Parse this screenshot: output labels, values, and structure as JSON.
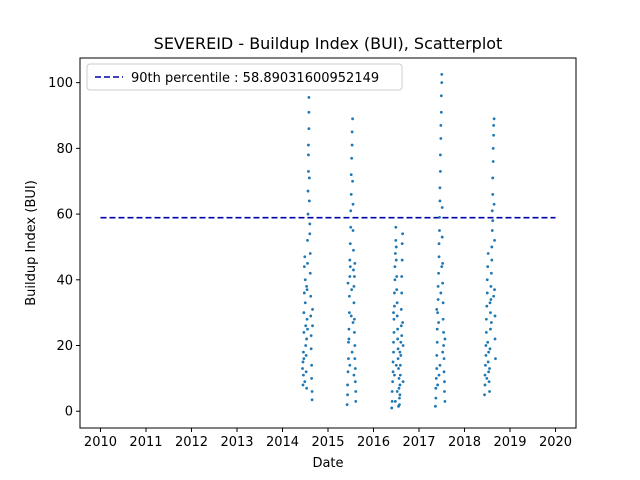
{
  "chart_data": {
    "type": "scatter",
    "title": "SEVEREID - Buildup Index (BUI), Scatterplot",
    "xlabel": "Date",
    "ylabel": "Buildup Index (BUI)",
    "xlim": [
      2009.55,
      2020.45
    ],
    "ylim": [
      -5.1,
      107.5
    ],
    "x_ticks": [
      2010,
      2011,
      2012,
      2013,
      2014,
      2015,
      2016,
      2017,
      2018,
      2019,
      2020
    ],
    "x_tick_labels": [
      "2010",
      "2011",
      "2012",
      "2013",
      "2014",
      "2015",
      "2016",
      "2017",
      "2018",
      "2019",
      "2020"
    ],
    "y_ticks": [
      0,
      20,
      40,
      60,
      80,
      100
    ],
    "y_tick_labels": [
      "0",
      "20",
      "40",
      "60",
      "80",
      "100"
    ],
    "grid": false,
    "legend_position": "top-left",
    "reference_line": {
      "label": "90th percentile : 58.89031600952149",
      "y": 58.89031600952149,
      "x_range": [
        2010.0,
        2020.0
      ],
      "style": "dashed",
      "color": "#0000aa"
    },
    "series": [
      {
        "color": "#1f77b4",
        "x_start_dates": [
          "2014-06-15",
          "2015-06-01",
          "2016-05-25",
          "2017-05-15",
          "2018-06-10"
        ],
        "x_end_dates": [
          "2014-08-15",
          "2015-08-10",
          "2016-08-15",
          "2017-08-20",
          "2018-08-25"
        ],
        "points": [
          [
            2014.44,
            13
          ],
          [
            2014.45,
            8
          ],
          [
            2014.45,
            15
          ],
          [
            2014.46,
            11
          ],
          [
            2014.46,
            18
          ],
          [
            2014.47,
            24
          ],
          [
            2014.47,
            30
          ],
          [
            2014.48,
            36
          ],
          [
            2014.48,
            44
          ],
          [
            2014.49,
            47
          ],
          [
            2014.5,
            40
          ],
          [
            2014.5,
            33
          ],
          [
            2014.51,
            26
          ],
          [
            2014.51,
            20
          ],
          [
            2014.52,
            17
          ],
          [
            2014.52,
            12
          ],
          [
            2014.53,
            7
          ],
          [
            2014.53,
            22
          ],
          [
            2014.54,
            28
          ],
          [
            2014.54,
            37
          ],
          [
            2014.55,
            45
          ],
          [
            2014.55,
            52
          ],
          [
            2014.56,
            60
          ],
          [
            2014.56,
            67
          ],
          [
            2014.57,
            73
          ],
          [
            2014.57,
            78
          ],
          [
            2014.57,
            81
          ],
          [
            2014.58,
            86
          ],
          [
            2014.58,
            91
          ],
          [
            2014.58,
            95.5
          ],
          [
            2014.59,
            71
          ],
          [
            2014.59,
            64
          ],
          [
            2014.6,
            57
          ],
          [
            2014.6,
            54
          ],
          [
            2014.61,
            48
          ],
          [
            2014.61,
            42
          ],
          [
            2014.62,
            35
          ],
          [
            2014.62,
            29
          ],
          [
            2014.63,
            23
          ],
          [
            2014.63,
            19
          ],
          [
            2014.64,
            14
          ],
          [
            2014.64,
            10
          ],
          [
            2014.65,
            6
          ],
          [
            2014.65,
            3.5
          ],
          [
            2014.66,
            26
          ],
          [
            2014.66,
            31
          ],
          [
            2014.53,
            38
          ],
          [
            2014.55,
            25
          ],
          [
            2014.49,
            9
          ],
          [
            2014.47,
            16
          ],
          [
            2015.42,
            2
          ],
          [
            2015.43,
            5
          ],
          [
            2015.43,
            8
          ],
          [
            2015.44,
            12
          ],
          [
            2015.45,
            16
          ],
          [
            2015.45,
            21
          ],
          [
            2015.46,
            25
          ],
          [
            2015.47,
            30
          ],
          [
            2015.47,
            35
          ],
          [
            2015.48,
            41
          ],
          [
            2015.48,
            46
          ],
          [
            2015.49,
            51
          ],
          [
            2015.5,
            56
          ],
          [
            2015.5,
            61
          ],
          [
            2015.51,
            66
          ],
          [
            2015.51,
            72
          ],
          [
            2015.52,
            77
          ],
          [
            2015.53,
            81
          ],
          [
            2015.53,
            85
          ],
          [
            2015.54,
            89
          ],
          [
            2015.54,
            70
          ],
          [
            2015.55,
            63
          ],
          [
            2015.55,
            55
          ],
          [
            2015.56,
            49
          ],
          [
            2015.56,
            43
          ],
          [
            2015.57,
            38
          ],
          [
            2015.57,
            33
          ],
          [
            2015.58,
            28
          ],
          [
            2015.58,
            24
          ],
          [
            2015.59,
            20
          ],
          [
            2015.59,
            16
          ],
          [
            2015.6,
            13
          ],
          [
            2015.6,
            9
          ],
          [
            2015.61,
            6
          ],
          [
            2015.61,
            3
          ],
          [
            2015.49,
            44
          ],
          [
            2015.52,
            37
          ],
          [
            2015.46,
            22
          ],
          [
            2015.55,
            27
          ],
          [
            2015.58,
            41
          ],
          [
            2015.59,
            45
          ],
          [
            2015.48,
            14
          ],
          [
            2015.53,
            18
          ],
          [
            2015.57,
            11
          ],
          [
            2015.44,
            39
          ],
          [
            2015.51,
            29
          ],
          [
            2016.4,
            1
          ],
          [
            2016.41,
            3
          ],
          [
            2016.41,
            6
          ],
          [
            2016.42,
            9
          ],
          [
            2016.43,
            12
          ],
          [
            2016.43,
            15
          ],
          [
            2016.44,
            18
          ],
          [
            2016.44,
            21
          ],
          [
            2016.45,
            24
          ],
          [
            2016.45,
            28
          ],
          [
            2016.46,
            32
          ],
          [
            2016.46,
            36
          ],
          [
            2016.47,
            40
          ],
          [
            2016.47,
            44
          ],
          [
            2016.48,
            48
          ],
          [
            2016.49,
            52
          ],
          [
            2016.49,
            56
          ],
          [
            2016.5,
            50
          ],
          [
            2016.5,
            46
          ],
          [
            2016.51,
            41
          ],
          [
            2016.51,
            37
          ],
          [
            2016.52,
            33
          ],
          [
            2016.52,
            29
          ],
          [
            2016.53,
            25
          ],
          [
            2016.53,
            22
          ],
          [
            2016.54,
            19
          ],
          [
            2016.54,
            16
          ],
          [
            2016.55,
            13
          ],
          [
            2016.56,
            10
          ],
          [
            2016.56,
            7
          ],
          [
            2016.57,
            4
          ],
          [
            2016.57,
            2
          ],
          [
            2016.58,
            5
          ],
          [
            2016.58,
            8
          ],
          [
            2016.59,
            11
          ],
          [
            2016.59,
            14
          ],
          [
            2016.6,
            17
          ],
          [
            2016.6,
            21
          ],
          [
            2016.61,
            26
          ],
          [
            2016.61,
            31
          ],
          [
            2016.62,
            36
          ],
          [
            2016.62,
            41
          ],
          [
            2016.63,
            46
          ],
          [
            2016.63,
            51
          ],
          [
            2016.64,
            54
          ],
          [
            2016.64,
            27
          ],
          [
            2016.65,
            20
          ],
          [
            2016.65,
            9
          ],
          [
            2016.48,
            3
          ],
          [
            2016.52,
            6
          ],
          [
            2016.55,
            1.5
          ],
          [
            2016.46,
            11
          ],
          [
            2016.5,
            14
          ],
          [
            2016.58,
            18
          ],
          [
            2016.62,
            23
          ],
          [
            2016.44,
            30
          ],
          [
            2017.36,
            1.5
          ],
          [
            2017.37,
            4
          ],
          [
            2017.37,
            7
          ],
          [
            2017.38,
            10
          ],
          [
            2017.39,
            13
          ],
          [
            2017.39,
            17
          ],
          [
            2017.4,
            21
          ],
          [
            2017.4,
            25
          ],
          [
            2017.41,
            30
          ],
          [
            2017.42,
            34
          ],
          [
            2017.42,
            38
          ],
          [
            2017.43,
            42
          ],
          [
            2017.44,
            47
          ],
          [
            2017.44,
            51
          ],
          [
            2017.45,
            55
          ],
          [
            2017.45,
            59
          ],
          [
            2017.46,
            64
          ],
          [
            2017.46,
            68
          ],
          [
            2017.47,
            73
          ],
          [
            2017.47,
            78
          ],
          [
            2017.48,
            83
          ],
          [
            2017.48,
            87
          ],
          [
            2017.49,
            91
          ],
          [
            2017.49,
            96
          ],
          [
            2017.5,
            100
          ],
          [
            2017.5,
            102.5
          ],
          [
            2017.51,
            62
          ],
          [
            2017.51,
            53
          ],
          [
            2017.52,
            45
          ],
          [
            2017.52,
            39
          ],
          [
            2017.53,
            33
          ],
          [
            2017.53,
            28
          ],
          [
            2017.54,
            24
          ],
          [
            2017.54,
            20
          ],
          [
            2017.55,
            16
          ],
          [
            2017.55,
            12
          ],
          [
            2017.56,
            9
          ],
          [
            2017.56,
            6
          ],
          [
            2017.57,
            3
          ],
          [
            2017.57,
            22
          ],
          [
            2017.43,
            27
          ],
          [
            2017.46,
            14
          ],
          [
            2017.41,
            8
          ],
          [
            2017.39,
            31
          ],
          [
            2017.48,
            36
          ],
          [
            2017.5,
            44
          ],
          [
            2017.44,
            11
          ],
          [
            2017.52,
            18
          ],
          [
            2018.44,
            5
          ],
          [
            2018.45,
            8
          ],
          [
            2018.45,
            11
          ],
          [
            2018.46,
            14
          ],
          [
            2018.47,
            17
          ],
          [
            2018.47,
            20
          ],
          [
            2018.48,
            24
          ],
          [
            2018.48,
            28
          ],
          [
            2018.49,
            32
          ],
          [
            2018.5,
            36
          ],
          [
            2018.5,
            40
          ],
          [
            2018.51,
            44
          ],
          [
            2018.52,
            48
          ],
          [
            2018.52,
            15
          ],
          [
            2018.53,
            18
          ],
          [
            2018.53,
            12
          ],
          [
            2018.54,
            9
          ],
          [
            2018.55,
            6
          ],
          [
            2018.55,
            13
          ],
          [
            2018.56,
            19
          ],
          [
            2018.57,
            25
          ],
          [
            2018.57,
            30
          ],
          [
            2018.58,
            34
          ],
          [
            2018.58,
            38
          ],
          [
            2018.59,
            42
          ],
          [
            2018.6,
            46
          ],
          [
            2018.6,
            50
          ],
          [
            2018.61,
            55
          ],
          [
            2018.61,
            61
          ],
          [
            2018.62,
            66
          ],
          [
            2018.62,
            71
          ],
          [
            2018.63,
            76
          ],
          [
            2018.63,
            80
          ],
          [
            2018.64,
            84
          ],
          [
            2018.64,
            87
          ],
          [
            2018.65,
            89
          ],
          [
            2018.65,
            63
          ],
          [
            2018.66,
            52
          ],
          [
            2018.66,
            37
          ],
          [
            2018.67,
            29
          ],
          [
            2018.67,
            22
          ],
          [
            2018.68,
            16
          ],
          [
            2018.49,
            10
          ],
          [
            2018.51,
            21
          ],
          [
            2018.56,
            33
          ],
          [
            2018.59,
            27
          ],
          [
            2018.62,
            58
          ],
          [
            2018.64,
            35
          ]
        ]
      }
    ]
  }
}
